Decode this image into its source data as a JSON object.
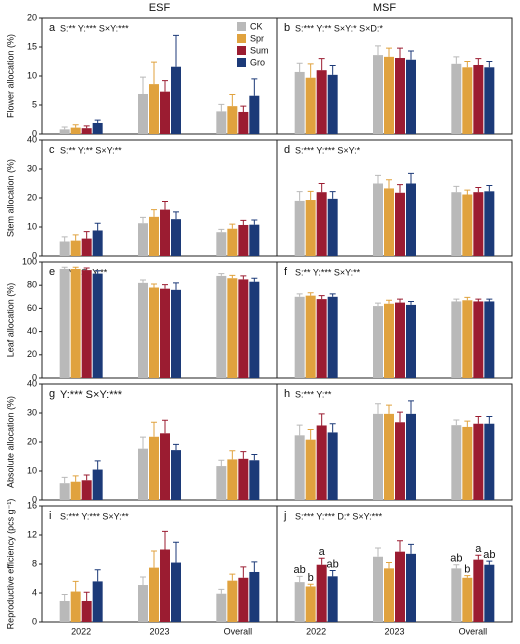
{
  "chart_data": [
    {
      "type": "bar",
      "title": "ESF",
      "label": "a",
      "annotation": "S:**  Y:***  S×Y:***",
      "ylabel": "Flower allocation (%)",
      "ylim": [
        0,
        20
      ],
      "yticks": [
        0,
        5,
        10,
        15,
        20
      ],
      "series": [
        {
          "name": "CK",
          "color": "#b9b9b9",
          "values": [
            0.8,
            6.9,
            3.9
          ],
          "errors": [
            0.4,
            2.9,
            1.2
          ]
        },
        {
          "name": "Spr",
          "color": "#e0a23e",
          "values": [
            1.1,
            8.6,
            4.8
          ],
          "errors": [
            0.5,
            3.8,
            2.0
          ]
        },
        {
          "name": "Sum",
          "color": "#9b1c31",
          "values": [
            1.0,
            7.3,
            3.8
          ],
          "errors": [
            0.4,
            1.9,
            1.0
          ]
        },
        {
          "name": "Gro",
          "color": "#1c3a78",
          "values": [
            1.9,
            11.6,
            6.6
          ],
          "errors": [
            0.5,
            5.4,
            2.9
          ]
        }
      ]
    },
    {
      "type": "bar",
      "title": "MSF",
      "label": "b",
      "annotation": "S:***  Y:**  S×Y:*  S×D:*",
      "ylim": [
        0,
        20
      ],
      "series": [
        {
          "color": "#b9b9b9",
          "values": [
            10.7,
            13.6,
            12.1
          ],
          "errors": [
            1.5,
            1.6,
            1.2
          ]
        },
        {
          "color": "#e0a23e",
          "values": [
            9.7,
            13.3,
            11.5
          ],
          "errors": [
            2.4,
            1.5,
            1.0
          ]
        },
        {
          "color": "#9b1c31",
          "values": [
            11.0,
            13.1,
            11.9
          ],
          "errors": [
            2.0,
            1.7,
            1.1
          ]
        },
        {
          "color": "#1c3a78",
          "values": [
            10.2,
            12.8,
            11.5
          ],
          "errors": [
            1.6,
            1.5,
            1.0
          ]
        }
      ]
    },
    {
      "type": "bar",
      "label": "c",
      "annotation": "S:**  Y:**  S×Y:**",
      "ylabel": "Stem allocation (%)",
      "ylim": [
        0,
        40
      ],
      "yticks": [
        0,
        10,
        20,
        30,
        40
      ],
      "series": [
        {
          "color": "#b9b9b9",
          "values": [
            5.0,
            11.3,
            8.2
          ],
          "errors": [
            1.6,
            2.0,
            1.0
          ]
        },
        {
          "color": "#e0a23e",
          "values": [
            5.3,
            13.5,
            9.4
          ],
          "errors": [
            2.0,
            2.5,
            1.6
          ]
        },
        {
          "color": "#9b1c31",
          "values": [
            6.0,
            16.0,
            10.7
          ],
          "errors": [
            2.4,
            2.8,
            1.6
          ]
        },
        {
          "color": "#1c3a78",
          "values": [
            8.8,
            12.7,
            10.8
          ],
          "errors": [
            2.5,
            2.5,
            1.6
          ]
        }
      ]
    },
    {
      "type": "bar",
      "label": "d",
      "annotation": "S:***  Y:***  S×Y:*",
      "ylim": [
        0,
        40
      ],
      "series": [
        {
          "color": "#b9b9b9",
          "values": [
            19.0,
            25.0,
            22.0
          ],
          "errors": [
            3.2,
            2.8,
            2.0
          ]
        },
        {
          "color": "#e0a23e",
          "values": [
            19.3,
            23.3,
            21.2
          ],
          "errors": [
            3.0,
            3.0,
            1.5
          ]
        },
        {
          "color": "#9b1c31",
          "values": [
            22.0,
            21.8,
            22.0
          ],
          "errors": [
            3.0,
            2.8,
            1.6
          ]
        },
        {
          "color": "#1c3a78",
          "values": [
            19.7,
            25.0,
            22.3
          ],
          "errors": [
            2.5,
            3.5,
            2.0
          ]
        }
      ]
    },
    {
      "type": "bar",
      "label": "e",
      "annotation": "Y:***   S×Y:**",
      "ylabel": "Leaf allocation (%)",
      "ylim": [
        0,
        100
      ],
      "yticks": [
        0,
        20,
        40,
        60,
        80,
        100
      ],
      "series": [
        {
          "color": "#b9b9b9",
          "values": [
            94,
            82,
            88
          ],
          "errors": [
            1.5,
            2.5,
            2.0
          ]
        },
        {
          "color": "#e0a23e",
          "values": [
            94,
            78,
            86
          ],
          "errors": [
            1.5,
            3.0,
            2.5
          ]
        },
        {
          "color": "#9b1c31",
          "values": [
            93,
            77,
            85
          ],
          "errors": [
            1.8,
            3.5,
            3.0
          ]
        },
        {
          "color": "#1c3a78",
          "values": [
            90,
            76,
            83
          ],
          "errors": [
            2.5,
            6.0,
            3.0
          ]
        }
      ]
    },
    {
      "type": "bar",
      "label": "f",
      "annotation": "S:**  Y:***  S×Y:**",
      "ylim": [
        0,
        100
      ],
      "series": [
        {
          "color": "#b9b9b9",
          "values": [
            70,
            62,
            66
          ],
          "errors": [
            2.5,
            2.5,
            2.0
          ]
        },
        {
          "color": "#e0a23e",
          "values": [
            71,
            64,
            67
          ],
          "errors": [
            2.5,
            3.0,
            2.5
          ]
        },
        {
          "color": "#9b1c31",
          "values": [
            68,
            65,
            66
          ],
          "errors": [
            3.0,
            3.0,
            2.0
          ]
        },
        {
          "color": "#1c3a78",
          "values": [
            70,
            63,
            66
          ],
          "errors": [
            2.5,
            3.0,
            2.0
          ]
        }
      ]
    },
    {
      "type": "bar",
      "label": "g",
      "annotation": "Y:***    S×Y:***",
      "ylabel": "Absolute allocation (%)",
      "ylim": [
        0,
        40
      ],
      "yticks": [
        0,
        10,
        20,
        30,
        40
      ],
      "series": [
        {
          "color": "#b9b9b9",
          "values": [
            5.8,
            17.7,
            11.7
          ],
          "errors": [
            2.0,
            4.0,
            2.0
          ]
        },
        {
          "color": "#e0a23e",
          "values": [
            6.3,
            21.8,
            14.0
          ],
          "errors": [
            2.0,
            5.0,
            3.0
          ]
        },
        {
          "color": "#9b1c31",
          "values": [
            6.8,
            23.0,
            14.2
          ],
          "errors": [
            1.8,
            4.5,
            2.5
          ]
        },
        {
          "color": "#1c3a78",
          "values": [
            10.5,
            17.2,
            13.7
          ],
          "errors": [
            3.0,
            2.0,
            2.0
          ]
        }
      ]
    },
    {
      "type": "bar",
      "label": "h",
      "annotation": "S:***  Y:**",
      "ylim": [
        0,
        40
      ],
      "series": [
        {
          "color": "#b9b9b9",
          "values": [
            22.3,
            29.7,
            25.8
          ],
          "errors": [
            3.5,
            3.5,
            1.8
          ]
        },
        {
          "color": "#e0a23e",
          "values": [
            20.8,
            29.7,
            25.2
          ],
          "errors": [
            3.5,
            3.0,
            2.0
          ]
        },
        {
          "color": "#9b1c31",
          "values": [
            25.7,
            26.8,
            26.3
          ],
          "errors": [
            4.0,
            3.5,
            2.5
          ]
        },
        {
          "color": "#1c3a78",
          "values": [
            23.3,
            29.7,
            26.3
          ],
          "errors": [
            3.0,
            4.5,
            2.5
          ]
        }
      ]
    },
    {
      "type": "bar",
      "label": "i",
      "annotation": "S:***  Y:***  S×Y:**",
      "ylabel": "Reproductive efficiency (pcs g⁻¹)",
      "ylim": [
        0,
        16
      ],
      "yticks": [
        0,
        4,
        8,
        12,
        16
      ],
      "categories": [
        "2022",
        "2023",
        "Overall"
      ],
      "series": [
        {
          "color": "#b9b9b9",
          "values": [
            2.9,
            5.1,
            3.9
          ],
          "errors": [
            0.9,
            1.1,
            0.6
          ]
        },
        {
          "color": "#e0a23e",
          "values": [
            4.2,
            7.5,
            5.7
          ],
          "errors": [
            1.4,
            2.3,
            0.9
          ]
        },
        {
          "color": "#9b1c31",
          "values": [
            2.9,
            10.0,
            6.1
          ],
          "errors": [
            1.2,
            2.5,
            1.5
          ]
        },
        {
          "color": "#1c3a78",
          "values": [
            5.6,
            8.2,
            6.9
          ],
          "errors": [
            1.6,
            2.8,
            1.4
          ]
        }
      ]
    },
    {
      "type": "bar",
      "label": "j",
      "annotation": "S:***  Y:***  D:*  S×Y:***",
      "ylim": [
        0,
        16
      ],
      "categories": [
        "2022",
        "2023",
        "Overall"
      ],
      "series": [
        {
          "color": "#b9b9b9",
          "values": [
            5.5,
            9.0,
            7.4
          ],
          "errors": [
            0.8,
            1.2,
            0.5
          ],
          "letters": [
            "ab",
            null,
            "ab"
          ]
        },
        {
          "color": "#e0a23e",
          "values": [
            4.9,
            7.4,
            6.1
          ],
          "errors": [
            0.3,
            0.8,
            0.3
          ],
          "letters": [
            "b",
            null,
            "b"
          ]
        },
        {
          "color": "#9b1c31",
          "values": [
            7.9,
            9.7,
            8.6
          ],
          "errors": [
            0.9,
            1.5,
            0.6
          ],
          "letters": [
            "a",
            null,
            "a"
          ]
        },
        {
          "color": "#1c3a78",
          "values": [
            6.3,
            9.4,
            7.9
          ],
          "errors": [
            0.8,
            1.3,
            0.5
          ],
          "letters": [
            "ab",
            null,
            "ab"
          ]
        }
      ]
    }
  ]
}
